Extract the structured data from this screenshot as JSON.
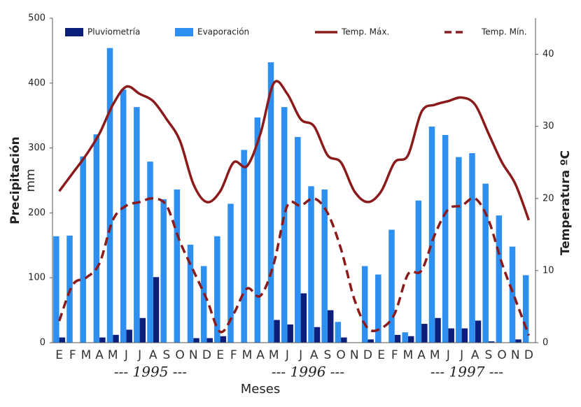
{
  "chart_data": {
    "type": "combo",
    "ylabel": "Precipitación",
    "ylabel_unit": "mm",
    "y2label": "Temperatura ºC",
    "xlabel": "Meses",
    "year_labels": [
      "--- 1995 ---",
      "--- 1996 ---",
      "--- 1997 ---"
    ],
    "categories": [
      "E",
      "F",
      "M",
      "A",
      "M",
      "J",
      "J",
      "A",
      "S",
      "O",
      "N",
      "D",
      "E",
      "F",
      "M",
      "A",
      "M",
      "J",
      "J",
      "A",
      "S",
      "O",
      "N",
      "D",
      "E",
      "F",
      "M",
      "A",
      "M",
      "J",
      "J",
      "A",
      "S",
      "O",
      "N",
      "D"
    ],
    "ylim": [
      0,
      500
    ],
    "yticks": [
      0,
      100,
      200,
      300,
      400,
      500
    ],
    "y2lim": [
      0,
      45
    ],
    "y2ticks": [
      0,
      10,
      20,
      30,
      40
    ],
    "series": [
      {
        "name": "Pluviometría",
        "type": "bar",
        "color": "#0b1f7a",
        "values": [
          8,
          0,
          0,
          8,
          12,
          20,
          38,
          101,
          0,
          0,
          7,
          7,
          10,
          0,
          0,
          0,
          35,
          28,
          76,
          24,
          50,
          8,
          0,
          5,
          0,
          12,
          10,
          29,
          38,
          22,
          22,
          34,
          2,
          0,
          5,
          0
        ]
      },
      {
        "name": "Evaporación",
        "type": "bar",
        "color": "#2d8ff0",
        "values": [
          164,
          165,
          287,
          321,
          454,
          390,
          363,
          279,
          221,
          236,
          151,
          118,
          164,
          214,
          297,
          347,
          432,
          363,
          317,
          241,
          236,
          32,
          0,
          118,
          105,
          174,
          16,
          219,
          333,
          320,
          286,
          292,
          245,
          196,
          148,
          104
        ]
      },
      {
        "name": "Temp. Máx.",
        "type": "line",
        "axis": "y2",
        "dash": false,
        "color": "#8b1a1a",
        "values": [
          21,
          23.5,
          26,
          29,
          33,
          35.5,
          34.5,
          33.5,
          31,
          28,
          22,
          19.5,
          21,
          25,
          24.5,
          29,
          36,
          34.5,
          31,
          30,
          26,
          25,
          21,
          19.5,
          21,
          25,
          26,
          32,
          33,
          33.5,
          34,
          33,
          29,
          25,
          22,
          17
        ]
      },
      {
        "name": "Temp. Mín.",
        "type": "line",
        "axis": "y2",
        "dash": true,
        "color": "#8b1a1a",
        "values": [
          3,
          8,
          9,
          11,
          17,
          19,
          19.5,
          20,
          19,
          14,
          10,
          6,
          1.5,
          4,
          7.5,
          6.5,
          11,
          19,
          19,
          20,
          18,
          13,
          6,
          2,
          2,
          4,
          9.5,
          10,
          15,
          18.5,
          19,
          20,
          17,
          11,
          6,
          1
        ]
      }
    ]
  }
}
